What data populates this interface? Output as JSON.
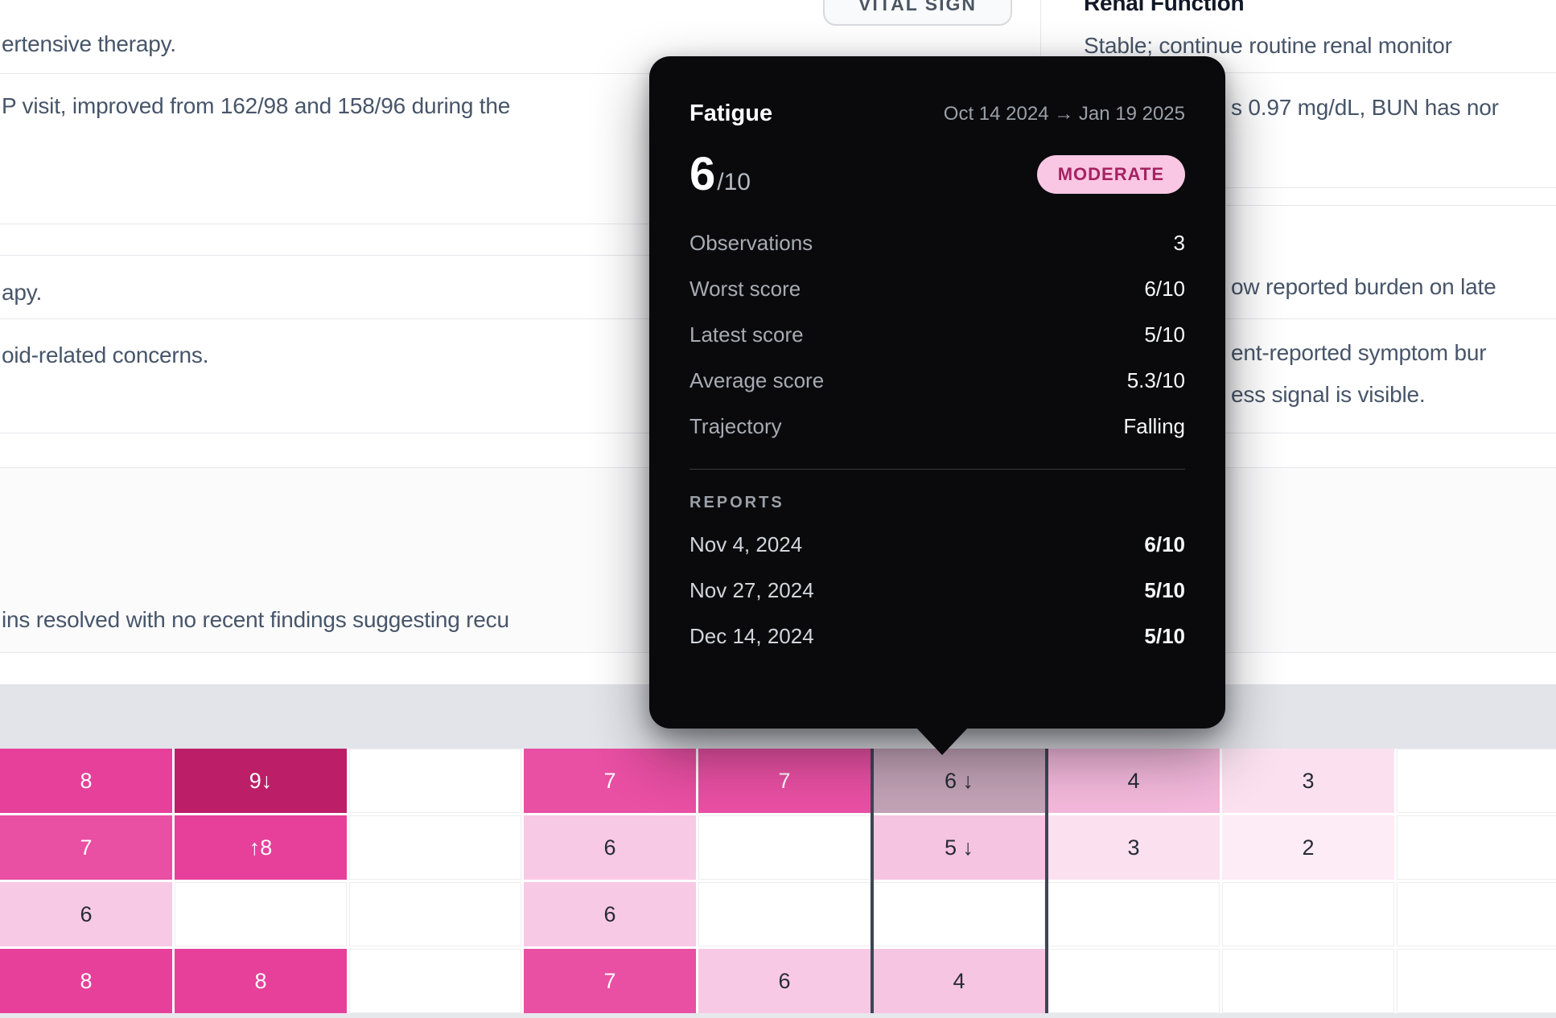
{
  "background": {
    "left_card_lines": {
      "line1": "ertensive therapy.",
      "line2": "P visit, improved from 162/98 and 158/96 during the",
      "line3": "apy.",
      "line4": "oid-related concerns.",
      "line5": "ins resolved with no recent findings suggesting recu"
    },
    "vital_sign_badge": "VITAL SIGN",
    "right_card": {
      "title": "Renal Function",
      "line1": "Stable; continue routine renal monitor",
      "line2": "s 0.97 mg/dL, BUN has nor",
      "line3": "ow reported burden on late",
      "line4": "ent-reported symptom bur",
      "line5": "ess signal is visible."
    }
  },
  "tooltip": {
    "title": "Fatigue",
    "date_range": "Oct 14 2024 → Jan 19 2025",
    "score": "6",
    "score_max": "/10",
    "severity": "MODERATE",
    "severity_bg": "#f9c7e4",
    "severity_text_color": "#a62261",
    "stats": [
      {
        "label": "Observations",
        "value": "3"
      },
      {
        "label": "Worst score",
        "value": "6/10"
      },
      {
        "label": "Latest score",
        "value": "5/10"
      },
      {
        "label": "Average score",
        "value": "5.3/10"
      },
      {
        "label": "Trajectory",
        "value": "Falling"
      }
    ],
    "reports_heading": "REPORTS",
    "reports": [
      {
        "date": "Nov 4, 2024",
        "value": "6/10"
      },
      {
        "date": "Nov 27, 2024",
        "value": "5/10"
      },
      {
        "date": "Dec 14, 2024",
        "value": "5/10"
      }
    ]
  },
  "heatmap": {
    "columns": 9,
    "selected_column_index": 5,
    "palette": {
      "s9": "#bc1f68",
      "s8": "#e6409b",
      "s7": "#e94fa3",
      "s6": "#f8c9e5",
      "s5": "#f5c4e1",
      "s4": "#f3b8db",
      "s4l": "#f6c5e2",
      "s3": "#fbe1f0",
      "s2": "#fdebf6",
      "hover": "#c2a2b6"
    },
    "dark_text_tones": [
      "s6",
      "s5",
      "s4",
      "s4l",
      "s3",
      "s2",
      "hover"
    ],
    "rows": [
      [
        {
          "text": "8",
          "tone": "s8"
        },
        {
          "text": "9↓",
          "tone": "s9"
        },
        null,
        {
          "text": "7",
          "tone": "s7"
        },
        {
          "text": "7",
          "tone": "s7"
        },
        {
          "text": "6 ↓",
          "tone": "hover"
        },
        {
          "text": "4",
          "tone": "s4"
        },
        {
          "text": "3",
          "tone": "s3"
        },
        null
      ],
      [
        {
          "text": "7",
          "tone": "s7"
        },
        {
          "text": "↑8",
          "tone": "s8"
        },
        null,
        {
          "text": "6",
          "tone": "s6"
        },
        null,
        {
          "text": "5 ↓",
          "tone": "s5"
        },
        {
          "text": "3",
          "tone": "s3"
        },
        {
          "text": "2",
          "tone": "s2"
        },
        null
      ],
      [
        {
          "text": "6",
          "tone": "s6"
        },
        null,
        null,
        {
          "text": "6",
          "tone": "s6"
        },
        null,
        null,
        null,
        null,
        null
      ],
      [
        {
          "text": "8",
          "tone": "s8"
        },
        {
          "text": "8",
          "tone": "s8"
        },
        null,
        {
          "text": "7",
          "tone": "s7"
        },
        {
          "text": "6",
          "tone": "s6"
        },
        {
          "text": "4",
          "tone": "s4l"
        },
        null,
        null,
        null
      ]
    ]
  }
}
